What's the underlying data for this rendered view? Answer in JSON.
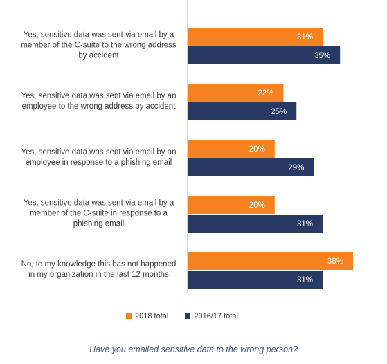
{
  "chart_data": {
    "type": "bar",
    "orientation": "horizontal",
    "categories": [
      "Yes, sensitive data was sent via email by a member of the C-suite to the wrong address by accident",
      "Yes, sensitive data was sent via email by an employee to the wrong address by accident",
      "Yes, sensitive data was sent via email by an employee in response to a phishing email",
      "Yes, sensitive data was sent via email by a member of the C-suite in response to a phishing email",
      "No, to my knowledge this has not happened in my organization in the last 12 months"
    ],
    "category_lines": [
      [
        "Yes, sensitive data was sent via email by a",
        "member of the C-suite to the wrong address",
        "by accident"
      ],
      [
        "Yes, sensitive data was sent via email by an",
        "employee to the wrong address by accident"
      ],
      [
        "Yes, sensitive data was sent via email by an",
        "employee in response to a phishing email"
      ],
      [
        "Yes, sensitive data was sent via email by a",
        "member of the C-suite in response to a",
        "phishing email"
      ],
      [
        "No, to my knowledge this has not happened",
        "in my organization in the last 12 months"
      ]
    ],
    "series": [
      {
        "name": "2018 total",
        "color": "#f5811f",
        "values": [
          31,
          22,
          20,
          20,
          38
        ],
        "labels": [
          "31%",
          "22%",
          "20%",
          "20%",
          "38%"
        ]
      },
      {
        "name": "2016/17 total",
        "color": "#283a63",
        "values": [
          35,
          25,
          29,
          31,
          31
        ],
        "labels": [
          "35%",
          "25%",
          "29%",
          "31%",
          "31%"
        ]
      }
    ],
    "xlim": [
      0,
      38
    ],
    "legend_position": "bottom",
    "grid": false,
    "caption": "Have you emailed sensitive data to the wrong person?"
  }
}
